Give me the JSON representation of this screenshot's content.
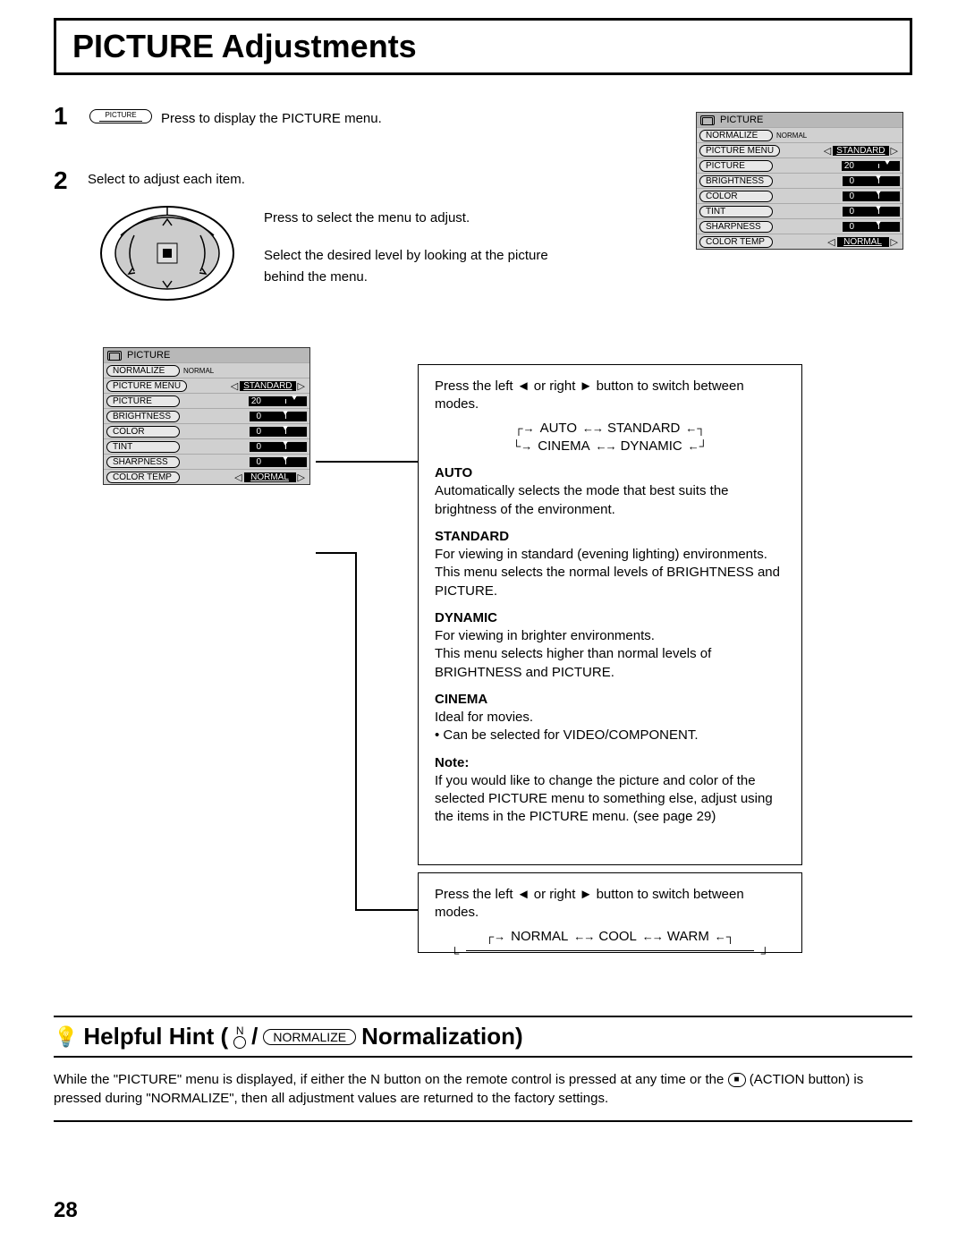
{
  "page": {
    "title": "PICTURE Adjustments",
    "page_number": "28"
  },
  "step1": {
    "num": "1",
    "button_label": "PICTURE",
    "text": "Press to display the PICTURE menu."
  },
  "step2": {
    "num": "2",
    "text": "Select to adjust each item.",
    "desc1": "Press to select the menu to adjust.",
    "desc2": "Select the desired level by looking at the picture behind the menu."
  },
  "osd": {
    "title": "PICTURE",
    "normalize": "NORMALIZE",
    "normal_small": "NORMAL",
    "rows": [
      {
        "label": "PICTURE  MENU",
        "type": "select",
        "value": "STANDARD"
      },
      {
        "label": "PICTURE",
        "type": "bar",
        "value": "20",
        "mark_pct": 70
      },
      {
        "label": "BRIGHTNESS",
        "type": "bar",
        "value": "0",
        "mark_pct": 50
      },
      {
        "label": "COLOR",
        "type": "bar",
        "value": "0",
        "mark_pct": 50
      },
      {
        "label": "TINT",
        "type": "bar",
        "value": "0",
        "mark_pct": 50
      },
      {
        "label": "SHARPNESS",
        "type": "bar",
        "value": "0",
        "mark_pct": 50
      },
      {
        "label": "COLOR  TEMP",
        "type": "select",
        "value": "NORMAL"
      }
    ]
  },
  "modes_panel": {
    "intro": "Press the left ◄ or right ► button to switch between modes.",
    "cycle_top": [
      "AUTO",
      "STANDARD"
    ],
    "cycle_bot": [
      "CINEMA",
      "DYNAMIC"
    ],
    "auto_head": "AUTO",
    "auto_body": "Automatically selects the mode that best suits the brightness of the environment.",
    "std_head": "STANDARD",
    "std_body": "For viewing in standard (evening lighting) environments. This menu selects the normal levels of BRIGHTNESS and PICTURE.",
    "dyn_head": "DYNAMIC",
    "dyn_body": "For viewing in brighter environments.\nThis menu selects higher than normal levels of BRIGHTNESS and PICTURE.",
    "cin_head": "CINEMA",
    "cin_body1": "Ideal for movies.",
    "cin_body2": "• Can be selected for VIDEO/COMPONENT.",
    "note_head": "Note:",
    "note_body": "If you would like to change the picture and color of the selected PICTURE menu to something else, adjust using the items in the PICTURE menu. (see page 29)"
  },
  "temp_panel": {
    "intro": "Press the left ◄ or right ► button to switch between modes.",
    "cycle": [
      "NORMAL",
      "COOL",
      "WARM"
    ]
  },
  "hint": {
    "title_a": "Helpful Hint (",
    "n": "N",
    "slash": " / ",
    "normalize": "NORMALIZE",
    "title_b": " Normalization)",
    "body_a": "While the \"PICTURE\" menu is displayed, if either the N button on the remote control is pressed at any time or the ",
    "action_glyph": "■",
    "body_b": " (ACTION button) is pressed during \"NORMALIZE\", then all adjustment values are returned to the factory settings."
  },
  "colors": {
    "osd_bg": "#d0d0d0",
    "osd_title_bg": "#b8b8b8",
    "black": "#000000",
    "white": "#ffffff"
  }
}
